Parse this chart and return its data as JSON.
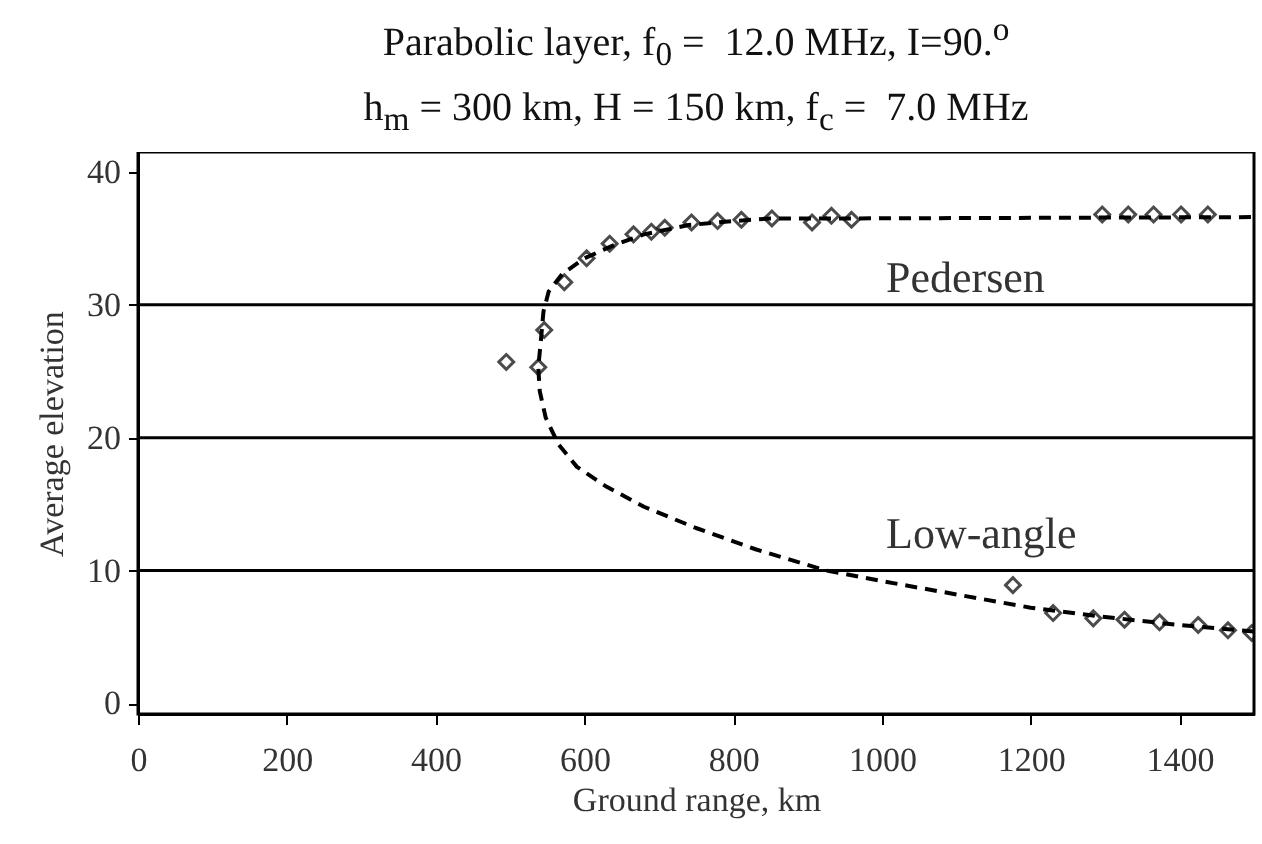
{
  "chart_data": {
    "type": "scatter",
    "title": "Parabolic layer, f$_{0}$ =  12.0 MHz, I=90.$^{o}$",
    "subtitle": "h$_{m}$ = 300 km, H = 150 km, f$_{c}$ =  7.0 MHz",
    "xlabel": "Ground range, km",
    "ylabel": "Average elevation",
    "xlim": [
      0,
      1500
    ],
    "xticks": [
      0,
      200,
      400,
      600,
      800,
      1000,
      1200,
      1400
    ],
    "ylim": [
      -0.8,
      41.5
    ],
    "yticks": [
      0,
      10,
      20,
      30,
      40
    ],
    "series": [
      {
        "type": "line",
        "color": "#000000",
        "marker": "none",
        "line_style": "dashed",
        "x": [
          1500,
          1400,
          1300,
          1200,
          1100,
          1000,
          925,
          830,
          750,
          680,
          630,
          590,
          565,
          548,
          540,
          538,
          541,
          545,
          552,
          570,
          600,
          640,
          680,
          740,
          800,
          850,
          960,
          1500
        ],
        "values": [
          5.4,
          5.9,
          6.5,
          7.2,
          8.2,
          9.2,
          10,
          11.6,
          13.2,
          14.8,
          16.3,
          17.8,
          19.5,
          21.5,
          23.5,
          25.3,
          27,
          29.5,
          31,
          32.3,
          33.5,
          34.5,
          35.3,
          36,
          36.3,
          36.5,
          36.5,
          36.6
        ]
      },
      {
        "color": "#000000",
        "marker": "diamond",
        "x": [
          495,
          538,
          546,
          573,
          603,
          634,
          666,
          690,
          708,
          744,
          779,
          811,
          852,
          906,
          932,
          959,
          1296,
          1331,
          1365,
          1402,
          1438,
          1176,
          1230,
          1284,
          1326,
          1373,
          1425,
          1465,
          1497
        ],
        "values": [
          25.7,
          25.3,
          28.1,
          31.7,
          33.5,
          34.6,
          35.3,
          35.5,
          35.8,
          36.2,
          36.3,
          36.4,
          36.5,
          36.2,
          36.7,
          36.4,
          36.8,
          36.8,
          36.8,
          36.8,
          36.8,
          8.9,
          6.8,
          6.4,
          6.3,
          6.1,
          5.9,
          5.5,
          5.3
        ]
      }
    ],
    "ref_lines": [
      {
        "axis": "y",
        "value": 10,
        "color": "#000000"
      },
      {
        "axis": "y",
        "value": 20,
        "color": "#000000"
      },
      {
        "axis": "y",
        "value": 30,
        "color": "#000000"
      }
    ],
    "annotations": [
      "Pedersen",
      "Low-angle"
    ]
  }
}
